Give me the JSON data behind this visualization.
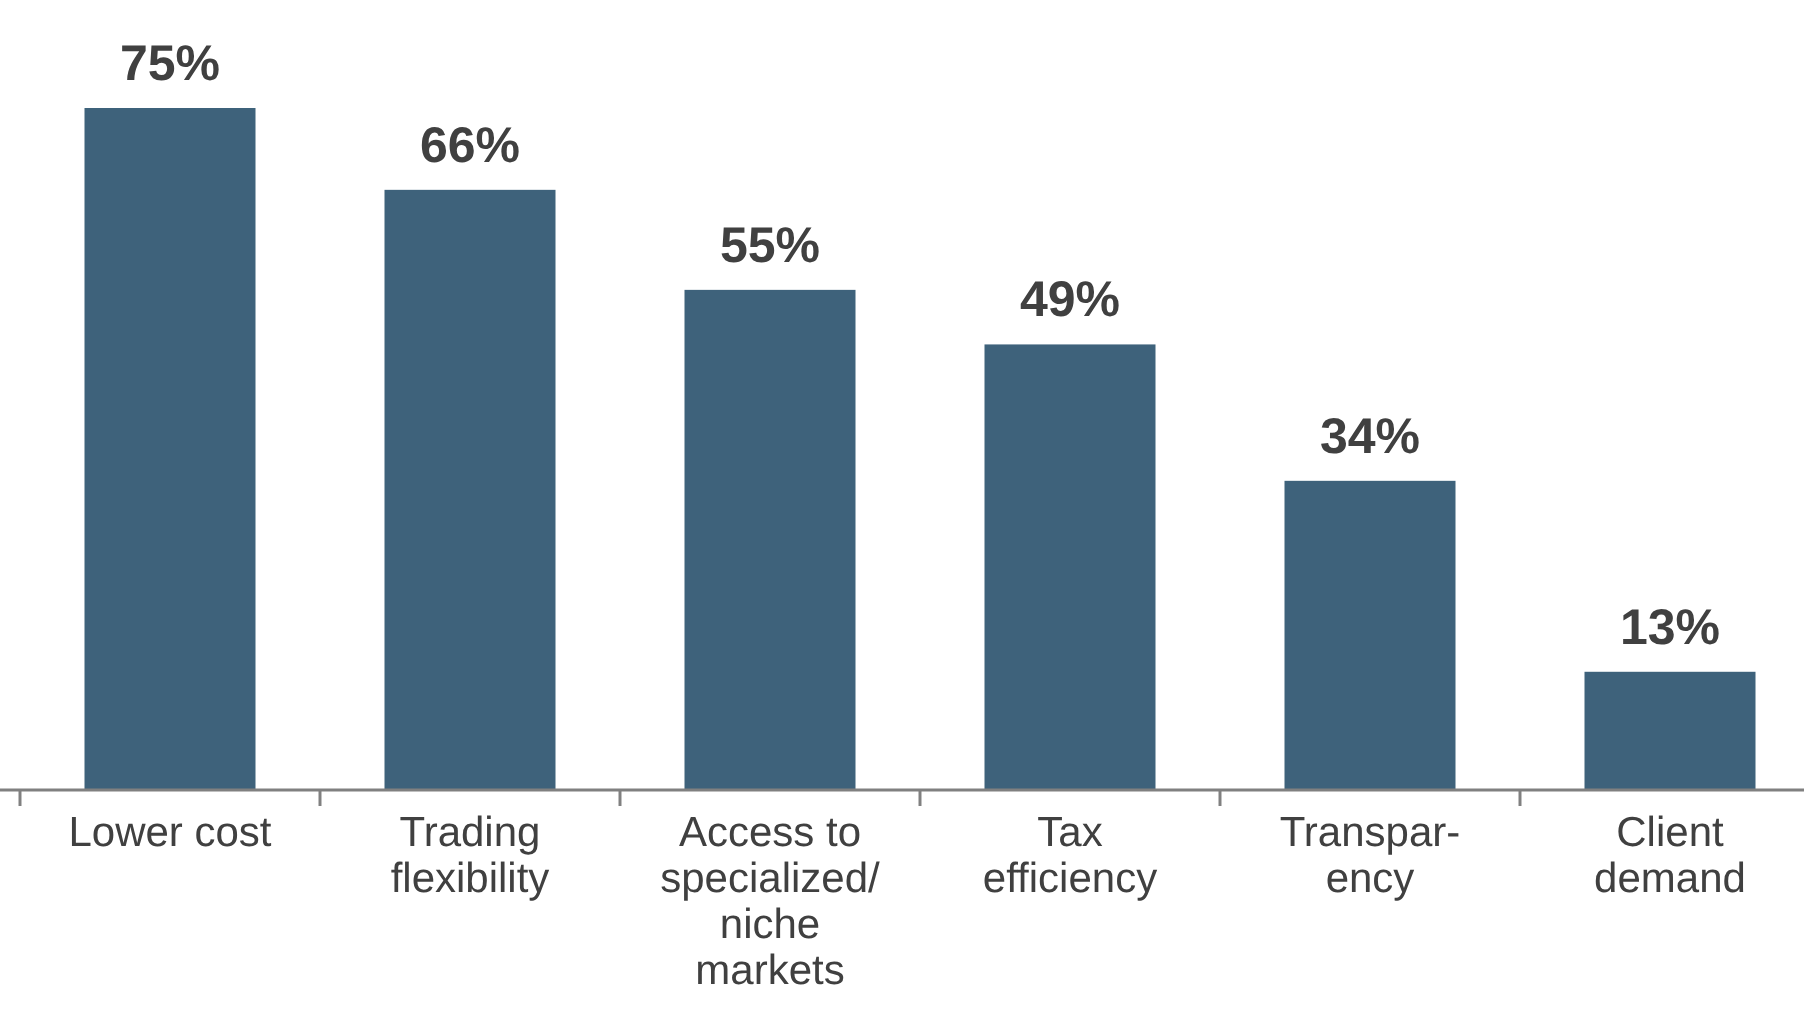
{
  "chart_data": {
    "type": "bar",
    "categories": [
      "Lower cost",
      "Trading\nflexibility",
      "Access to\nspecialized/\nniche\nmarkets",
      "Tax\nefficiency",
      "Transpar-\nency",
      "Client\ndemand"
    ],
    "values": [
      75,
      66,
      55,
      49,
      34,
      13
    ],
    "value_labels": [
      "75%",
      "66%",
      "55%",
      "49%",
      "34%",
      "13%"
    ],
    "color": "#3e627b"
  }
}
